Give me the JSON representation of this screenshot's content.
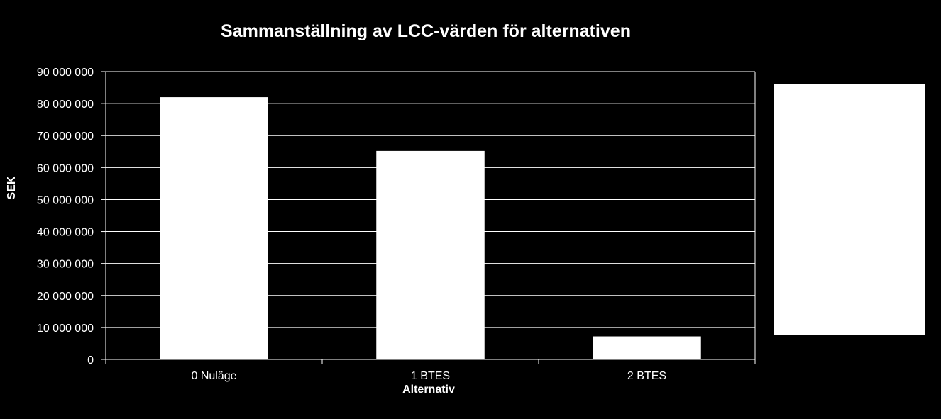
{
  "chart_data": {
    "type": "bar",
    "title": "Sammanställning av LCC-värden för alternativen",
    "xlabel": "Alternativ",
    "ylabel": "SEK",
    "categories": [
      "0 Nuläge",
      "1 BTES",
      "2 BTES"
    ],
    "values": [
      82000000,
      65200000,
      7200000
    ],
    "ylim": [
      0,
      90000000
    ],
    "yticks": [
      0,
      10000000,
      20000000,
      30000000,
      40000000,
      50000000,
      60000000,
      70000000,
      80000000,
      90000000
    ],
    "ytick_labels": [
      "0",
      "10 000 000",
      "20 000 000",
      "30 000 000",
      "40 000 000",
      "50 000 000",
      "60 000 000",
      "70 000 000",
      "80 000 000",
      "90 000 000"
    ],
    "grid": true,
    "legend": "right",
    "colors": {
      "background": "#000000",
      "bar": "#ffffff",
      "grid": "#ffffff",
      "text": "#ffffff"
    }
  }
}
